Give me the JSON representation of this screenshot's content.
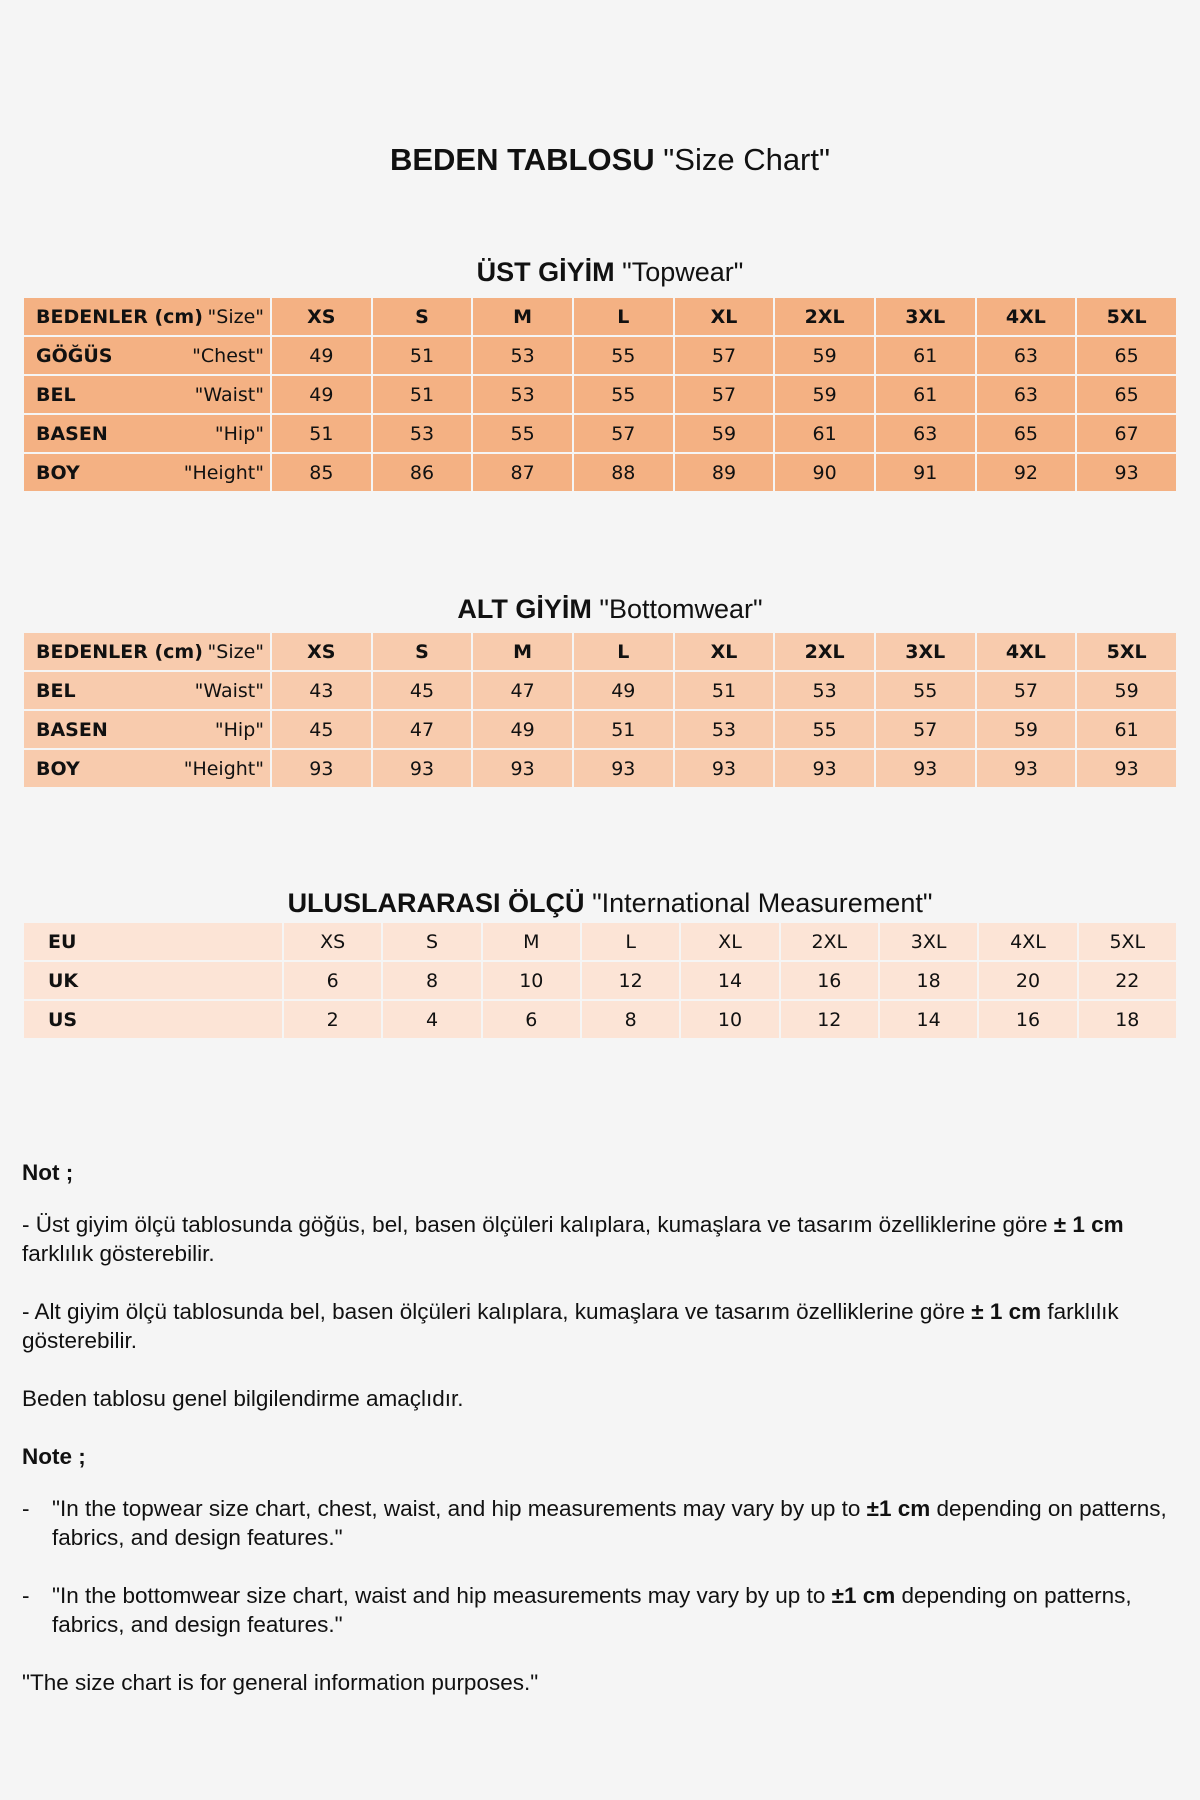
{
  "title": {
    "tr": "BEDEN TABLOSU",
    "en": "\"Size Chart\""
  },
  "sizes": [
    "XS",
    "S",
    "M",
    "L",
    "XL",
    "2XL",
    "3XL",
    "4XL",
    "5XL"
  ],
  "topwear": {
    "heading_tr": "ÜST GİYİM",
    "heading_en": "\"Topwear\"",
    "header": {
      "tr": "BEDENLER (cm)",
      "en": "\"Size\""
    },
    "rows": [
      {
        "tr": "GÖĞÜS",
        "en": "\"Chest\"",
        "values": [
          "49",
          "51",
          "53",
          "55",
          "57",
          "59",
          "61",
          "63",
          "65"
        ]
      },
      {
        "tr": "BEL",
        "en": "\"Waist\"",
        "values": [
          "49",
          "51",
          "53",
          "55",
          "57",
          "59",
          "61",
          "63",
          "65"
        ]
      },
      {
        "tr": "BASEN",
        "en": "\"Hip\"",
        "values": [
          "51",
          "53",
          "55",
          "57",
          "59",
          "61",
          "63",
          "65",
          "67"
        ]
      },
      {
        "tr": "BOY",
        "en": "\"Height\"",
        "values": [
          "85",
          "86",
          "87",
          "88",
          "89",
          "90",
          "91",
          "92",
          "93"
        ]
      }
    ]
  },
  "bottomwear": {
    "heading_tr": "ALT GİYİM",
    "heading_en": "\"Bottomwear\"",
    "header": {
      "tr": "BEDENLER (cm)",
      "en": "\"Size\""
    },
    "rows": [
      {
        "tr": "BEL",
        "en": "\"Waist\"",
        "values": [
          "43",
          "45",
          "47",
          "49",
          "51",
          "53",
          "55",
          "57",
          "59"
        ]
      },
      {
        "tr": "BASEN",
        "en": "\"Hip\"",
        "values": [
          "45",
          "47",
          "49",
          "51",
          "53",
          "55",
          "57",
          "59",
          "61"
        ]
      },
      {
        "tr": "BOY",
        "en": "\"Height\"",
        "values": [
          "93",
          "93",
          "93",
          "93",
          "93",
          "93",
          "93",
          "93",
          "93"
        ]
      }
    ]
  },
  "international": {
    "heading_tr": "ULUSLARARASI  ÖLÇÜ",
    "heading_en": "\"International Measurement\"",
    "rows": [
      {
        "label": "EU",
        "values": [
          "XS",
          "S",
          "M",
          "L",
          "XL",
          "2XL",
          "3XL",
          "4XL",
          "5XL"
        ]
      },
      {
        "label": "UK",
        "values": [
          "6",
          "8",
          "10",
          "12",
          "14",
          "16",
          "18",
          "20",
          "22"
        ]
      },
      {
        "label": "US",
        "values": [
          "2",
          "4",
          "6",
          "8",
          "10",
          "12",
          "14",
          "16",
          "18"
        ]
      }
    ]
  },
  "notes": {
    "tr_heading": "Not ;",
    "tr1_a": "- Üst giyim ölçü tablosunda göğüs, bel, basen ölçüleri kalıplara, kumaşlara ve tasarım özelliklerine göre ",
    "tr1_b": "± 1 cm",
    "tr1_c": " farklılık gösterebilir.",
    "tr2_a": "- Alt giyim ölçü tablosunda bel, basen ölçüleri kalıplara, kumaşlara ve tasarım özelliklerine göre ",
    "tr2_b": "± 1 cm",
    "tr2_c": " farklılık gösterebilir.",
    "tr3": "Beden tablosu genel bilgilendirme amaçlıdır.",
    "en_heading": "Note ;",
    "en1_a": "\"In the topwear size chart, chest, waist, and hip measurements may vary by up to ",
    "en1_b": "±1 cm",
    "en1_c": " depending on patterns, fabrics, and design features.\"",
    "en2_a": "\"In the bottomwear size chart, waist and hip measurements may vary by up to ",
    "en2_b": "±1 cm",
    "en2_c": " depending on patterns, fabrics, and design features.\"",
    "en3": "\"The size chart is for general information purposes.\"",
    "dash": "-"
  },
  "colors": {
    "topwear": "#F4B183",
    "bottomwear": "#F8CBAD",
    "international": "#FCE4D6",
    "background": "#F5F5F5"
  }
}
